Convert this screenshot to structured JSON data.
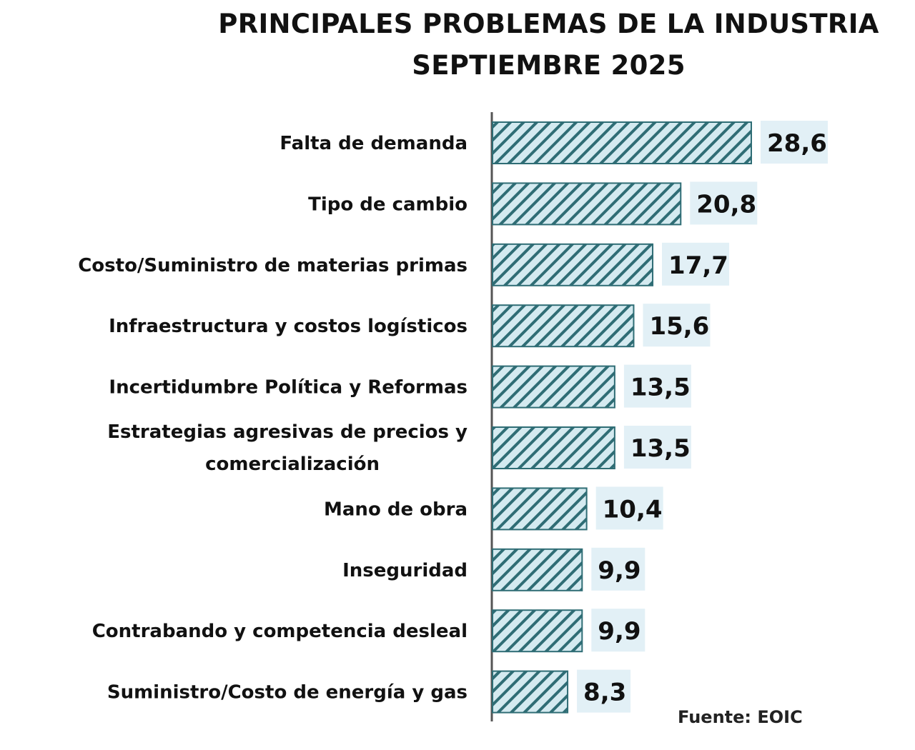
{
  "chart_data": {
    "type": "bar",
    "orientation": "horizontal",
    "title": "PRINCIPALES PROBLEMAS DE LA INDUSTRIA",
    "subtitle": "SEPTIEMBRE 2025",
    "categories": [
      "Falta de demanda",
      "Tipo de cambio",
      "Costo/Suministro de materias primas",
      "Infraestructura y costos logísticos",
      "Incertidumbre Política y Reformas",
      "Estrategias agresivas de precios y\ncomercialización",
      "Mano de obra",
      "Inseguridad",
      "Contrabando y competencia desleal",
      "Suministro/Costo de energía y gas"
    ],
    "values": [
      28.6,
      20.8,
      17.7,
      15.6,
      13.5,
      13.5,
      10.4,
      9.9,
      9.9,
      8.3
    ],
    "value_labels": [
      "28,6",
      "20,8",
      "17,7",
      "15,6",
      "13,5",
      "13,5",
      "10,4",
      "9,9",
      "9,9",
      "8,3"
    ],
    "xlim": [
      0,
      30
    ],
    "grid": false,
    "legend": "none",
    "colors": {
      "bar_fill": "#d4eaf0",
      "hatch": "#2f6d75",
      "label_bg": "#e2f0f6"
    }
  },
  "source": "Fuente: EOIC"
}
